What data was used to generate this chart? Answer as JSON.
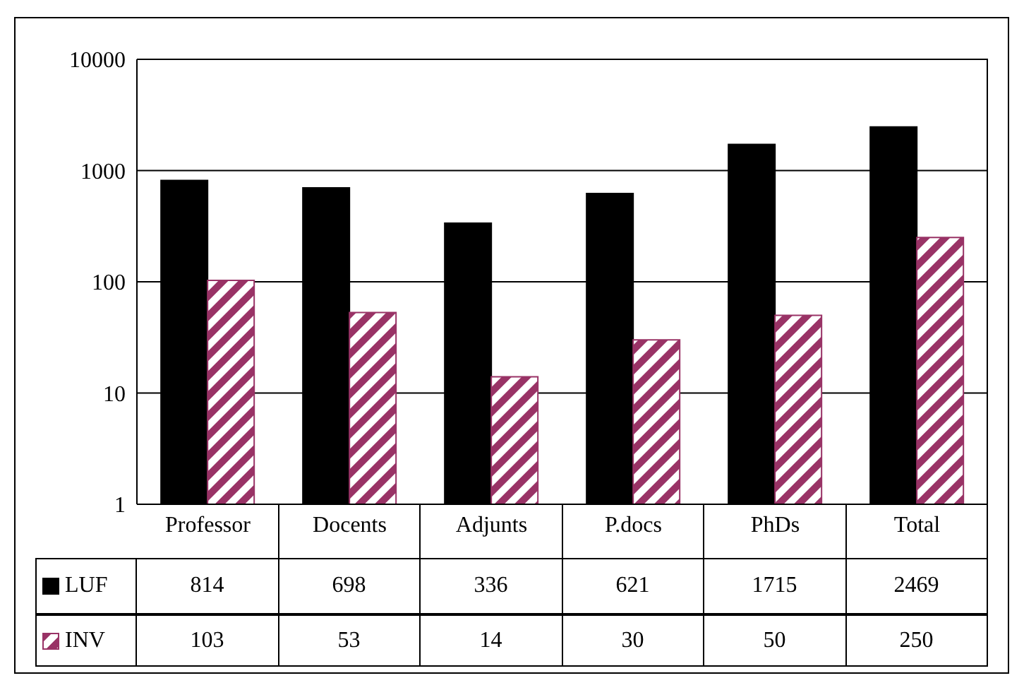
{
  "chart_data": {
    "type": "bar",
    "categories": [
      "Professor",
      "Docents",
      "Adjunts",
      "P.docs",
      "PhDs",
      "Total"
    ],
    "series": [
      {
        "name": "LUF",
        "color": "#000000",
        "values": [
          814,
          698,
          336,
          621,
          1715,
          2469
        ]
      },
      {
        "name": "INV",
        "color": "#993366",
        "values": [
          103,
          53,
          14,
          30,
          50,
          250
        ]
      }
    ],
    "log": "y",
    "ylim": [
      1,
      10000
    ],
    "yticks": [
      1,
      10,
      100,
      1000,
      10000
    ],
    "grid": "y",
    "legend": "bottom",
    "data_labels": true
  }
}
